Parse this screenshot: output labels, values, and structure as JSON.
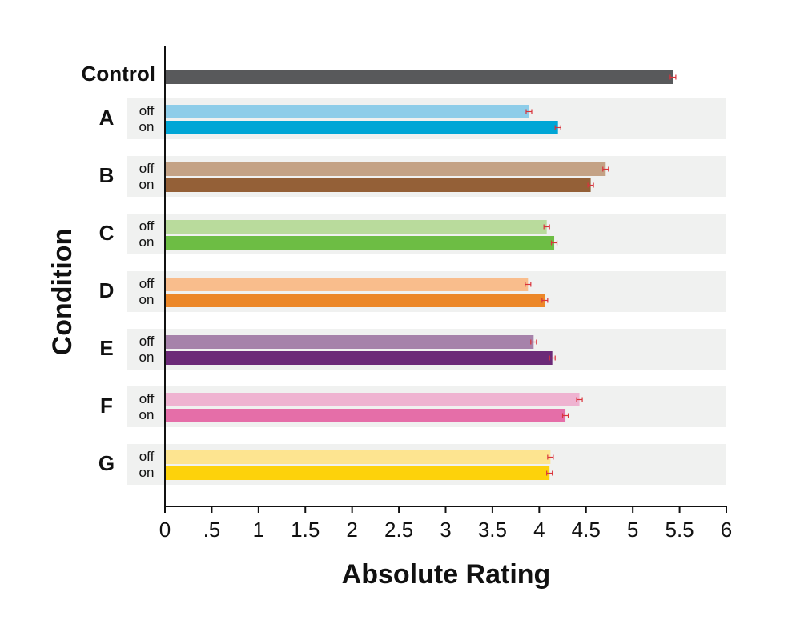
{
  "chart_data": {
    "type": "bar",
    "orientation": "horizontal",
    "x_label": "Absolute Rating",
    "y_label": "Condition",
    "xlim": [
      0,
      6
    ],
    "xticks": [
      0,
      {
        "value": 0.5,
        "label": ".5"
      },
      1,
      1.5,
      2,
      2.5,
      3,
      3.5,
      4,
      4.5,
      5,
      5.5,
      6
    ],
    "error_color": "#d9343c",
    "band_color": "#f0f1f0",
    "control": {
      "label": "Control",
      "value": 5.43,
      "error": 0.03,
      "color": "#58595b"
    },
    "groups": [
      {
        "label": "A",
        "bars": [
          {
            "name": "off",
            "value": 3.89,
            "error": 0.03,
            "color": "#8ecde9"
          },
          {
            "name": "on",
            "value": 4.2,
            "error": 0.03,
            "color": "#00a6d6"
          }
        ]
      },
      {
        "label": "B",
        "bars": [
          {
            "name": "off",
            "value": 4.71,
            "error": 0.03,
            "color": "#c4a285"
          },
          {
            "name": "on",
            "value": 4.55,
            "error": 0.03,
            "color": "#946037"
          }
        ]
      },
      {
        "label": "C",
        "bars": [
          {
            "name": "off",
            "value": 4.08,
            "error": 0.03,
            "color": "#b9db9c"
          },
          {
            "name": "on",
            "value": 4.16,
            "error": 0.03,
            "color": "#6dbd44"
          }
        ]
      },
      {
        "label": "D",
        "bars": [
          {
            "name": "off",
            "value": 3.88,
            "error": 0.03,
            "color": "#f9bd8c"
          },
          {
            "name": "on",
            "value": 4.06,
            "error": 0.03,
            "color": "#ec8728"
          }
        ]
      },
      {
        "label": "E",
        "bars": [
          {
            "name": "off",
            "value": 3.94,
            "error": 0.03,
            "color": "#a682aa"
          },
          {
            "name": "on",
            "value": 4.14,
            "error": 0.03,
            "color": "#6c2a78"
          }
        ]
      },
      {
        "label": "F",
        "bars": [
          {
            "name": "off",
            "value": 4.43,
            "error": 0.03,
            "color": "#efb3d1"
          },
          {
            "name": "on",
            "value": 4.28,
            "error": 0.03,
            "color": "#e56ea8"
          }
        ]
      },
      {
        "label": "G",
        "bars": [
          {
            "name": "off",
            "value": 4.12,
            "error": 0.03,
            "color": "#fde490"
          },
          {
            "name": "on",
            "value": 4.11,
            "error": 0.03,
            "color": "#fdd20b"
          }
        ]
      }
    ]
  }
}
